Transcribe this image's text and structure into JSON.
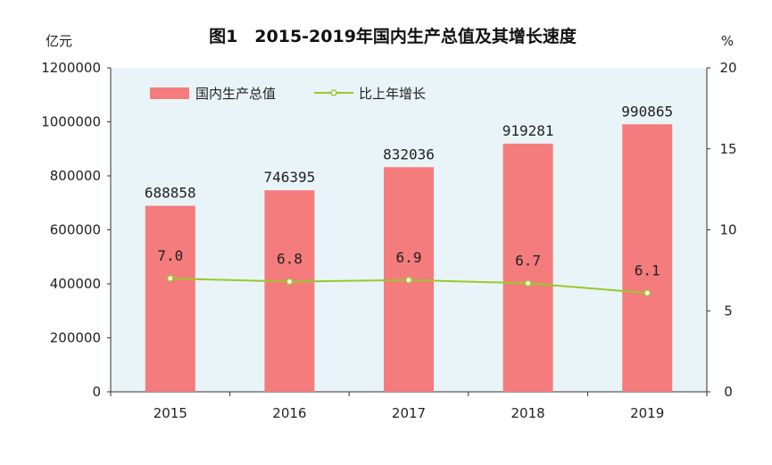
{
  "chart_data": {
    "type": "bar",
    "title": "图1　2015-2019年国内生产总值及其增长速度",
    "unit_left": "亿元",
    "unit_right": "%",
    "categories": [
      "2015",
      "2016",
      "2017",
      "2018",
      "2019"
    ],
    "series": [
      {
        "name": "国内生产总值",
        "type": "bar",
        "axis": "left",
        "values": [
          688858,
          746395,
          832036,
          919281,
          990865
        ],
        "labels": [
          "688858",
          "746395",
          "832036",
          "919281",
          "990865"
        ],
        "color": "#f47c7c"
      },
      {
        "name": "比上年增长",
        "type": "line",
        "axis": "right",
        "values": [
          7.0,
          6.8,
          6.9,
          6.7,
          6.1
        ],
        "labels": [
          "7.0",
          "6.8",
          "6.9",
          "6.7",
          "6.1"
        ],
        "color": "#9ac82d"
      }
    ],
    "y_left": {
      "min": 0,
      "max": 1200000,
      "ticks": [
        "0",
        "200000",
        "400000",
        "600000",
        "800000",
        "1000000",
        "1200000"
      ]
    },
    "y_right": {
      "min": 0,
      "max": 20,
      "ticks": [
        "0",
        "5",
        "10",
        "15",
        "20"
      ]
    },
    "legend_position": "top-left",
    "plot_background": "#e8f4f8",
    "grid": false
  }
}
